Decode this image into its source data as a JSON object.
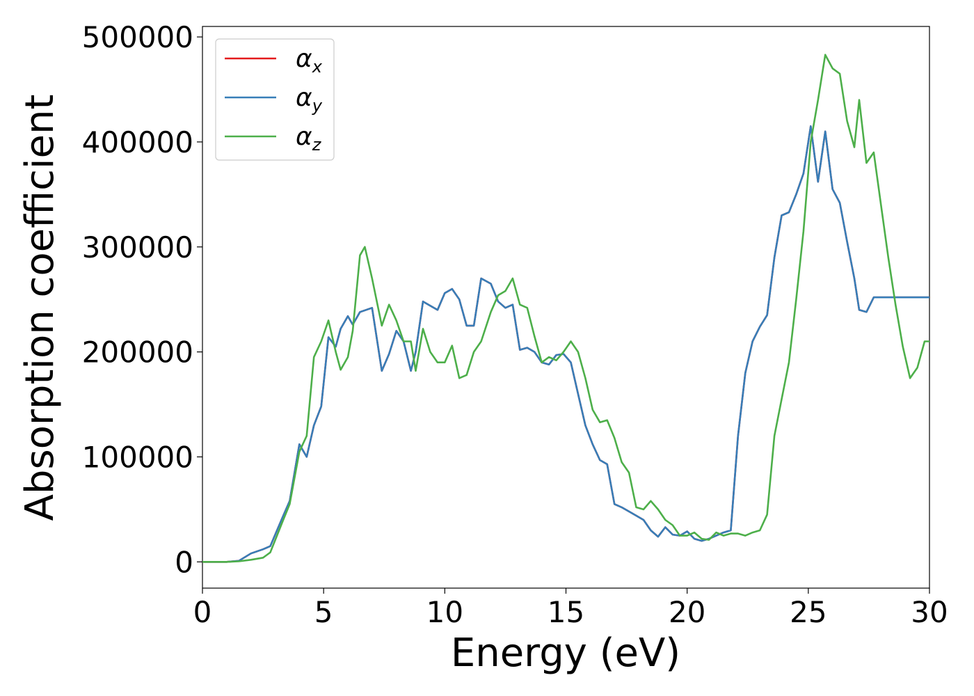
{
  "chart_data": {
    "type": "line",
    "xlabel": "Energy (eV)",
    "ylabel": "Absorption coefficient",
    "xlim": [
      0,
      30
    ],
    "ylim": [
      -25000,
      510000
    ],
    "xticks": [
      0,
      5,
      10,
      15,
      20,
      25,
      30
    ],
    "yticks": [
      0,
      100000,
      200000,
      300000,
      400000,
      500000
    ],
    "grid": false,
    "legend_position": "top-left",
    "series": [
      {
        "name": "x",
        "label_base": "α",
        "label_sub": "x",
        "color": "#e41a1c",
        "x": [
          0,
          1,
          1.5,
          2,
          2.5,
          2.8,
          3.3,
          3.6,
          4.0,
          4.3,
          4.6,
          4.9,
          5.2,
          5.5,
          5.7,
          6.0,
          6.2,
          6.5,
          7.0,
          7.4,
          7.7,
          8.0,
          8.3,
          8.6,
          8.8,
          9.1,
          9.4,
          9.7,
          10.0,
          10.3,
          10.6,
          10.9,
          11.2,
          11.5,
          11.9,
          12.2,
          12.5,
          12.8,
          13.1,
          13.4,
          13.7,
          14.0,
          14.3,
          14.6,
          14.9,
          15.2,
          15.5,
          15.8,
          16.1,
          16.4,
          16.7,
          17.0,
          17.3,
          17.6,
          17.9,
          18.2,
          18.5,
          18.8,
          19.1,
          19.4,
          19.7,
          20.0,
          20.3,
          20.6,
          20.9,
          21.2,
          21.5,
          21.8,
          22.1,
          22.4,
          22.7,
          23.0,
          23.3,
          23.6,
          23.9,
          24.2,
          24.5,
          24.8,
          25.1,
          25.4,
          25.7,
          26.0,
          26.3,
          26.6,
          26.9,
          27.1,
          27.4,
          27.7,
          28.0,
          28.3,
          28.6,
          28.9,
          29.2,
          29.5,
          29.8,
          30.0
        ],
        "y": [
          0,
          0,
          1000,
          8000,
          12000,
          15000,
          42000,
          58000,
          112000,
          100000,
          130000,
          148000,
          214000,
          205000,
          222000,
          234000,
          226000,
          238000,
          242000,
          182000,
          198000,
          220000,
          210000,
          182000,
          200000,
          248000,
          244000,
          240000,
          256000,
          260000,
          250000,
          225000,
          225000,
          270000,
          265000,
          248000,
          242000,
          245000,
          202000,
          204000,
          200000,
          190000,
          188000,
          197000,
          198000,
          190000,
          160000,
          130000,
          112000,
          97000,
          93000,
          55000,
          52000,
          48000,
          44000,
          40000,
          30000,
          24000,
          33000,
          26000,
          25000,
          29000,
          22000,
          20000,
          22000,
          25000,
          28000,
          30000,
          120000,
          180000,
          210000,
          224000,
          235000,
          290000,
          330000,
          333000,
          350000,
          370000,
          415000,
          362000,
          410000,
          355000,
          342000,
          305000,
          270000,
          240000,
          238000,
          252000,
          252000,
          252000,
          252000,
          252000,
          252000,
          252000,
          252000,
          252000
        ]
      },
      {
        "name": "y",
        "label_base": "α",
        "label_sub": "y",
        "color": "#377eb8",
        "x": [
          0,
          1,
          1.5,
          2,
          2.5,
          2.8,
          3.3,
          3.6,
          4.0,
          4.3,
          4.6,
          4.9,
          5.2,
          5.5,
          5.7,
          6.0,
          6.2,
          6.5,
          7.0,
          7.4,
          7.7,
          8.0,
          8.3,
          8.6,
          8.8,
          9.1,
          9.4,
          9.7,
          10.0,
          10.3,
          10.6,
          10.9,
          11.2,
          11.5,
          11.9,
          12.2,
          12.5,
          12.8,
          13.1,
          13.4,
          13.7,
          14.0,
          14.3,
          14.6,
          14.9,
          15.2,
          15.5,
          15.8,
          16.1,
          16.4,
          16.7,
          17.0,
          17.3,
          17.6,
          17.9,
          18.2,
          18.5,
          18.8,
          19.1,
          19.4,
          19.7,
          20.0,
          20.3,
          20.6,
          20.9,
          21.2,
          21.5,
          21.8,
          22.1,
          22.4,
          22.7,
          23.0,
          23.3,
          23.6,
          23.9,
          24.2,
          24.5,
          24.8,
          25.1,
          25.4,
          25.7,
          26.0,
          26.3,
          26.6,
          26.9,
          27.1,
          27.4,
          27.7,
          28.0,
          28.3,
          28.6,
          28.9,
          29.2,
          29.5,
          29.8,
          30.0
        ],
        "y": [
          0,
          0,
          1000,
          8000,
          12000,
          15000,
          42000,
          58000,
          112000,
          100000,
          130000,
          148000,
          214000,
          205000,
          222000,
          234000,
          226000,
          238000,
          242000,
          182000,
          198000,
          220000,
          210000,
          182000,
          200000,
          248000,
          244000,
          240000,
          256000,
          260000,
          250000,
          225000,
          225000,
          270000,
          265000,
          248000,
          242000,
          245000,
          202000,
          204000,
          200000,
          190000,
          188000,
          197000,
          198000,
          190000,
          160000,
          130000,
          112000,
          97000,
          93000,
          55000,
          52000,
          48000,
          44000,
          40000,
          30000,
          24000,
          33000,
          26000,
          25000,
          29000,
          22000,
          20000,
          22000,
          25000,
          28000,
          30000,
          120000,
          180000,
          210000,
          224000,
          235000,
          290000,
          330000,
          333000,
          350000,
          370000,
          415000,
          362000,
          410000,
          355000,
          342000,
          305000,
          270000,
          240000,
          238000,
          252000,
          252000,
          252000,
          252000,
          252000,
          252000,
          252000,
          252000,
          252000
        ]
      },
      {
        "name": "z",
        "label_base": "α",
        "label_sub": "z",
        "color": "#4daf4a",
        "x": [
          0,
          1,
          1.5,
          2,
          2.5,
          2.8,
          3.3,
          3.6,
          4.0,
          4.3,
          4.6,
          4.9,
          5.2,
          5.5,
          5.7,
          6.0,
          6.2,
          6.5,
          6.7,
          7.0,
          7.4,
          7.7,
          8.0,
          8.3,
          8.6,
          8.8,
          9.1,
          9.4,
          9.7,
          10.0,
          10.3,
          10.6,
          10.9,
          11.2,
          11.5,
          11.9,
          12.2,
          12.5,
          12.8,
          13.1,
          13.4,
          13.7,
          14.0,
          14.3,
          14.6,
          14.9,
          15.2,
          15.5,
          15.8,
          16.1,
          16.4,
          16.7,
          17.0,
          17.3,
          17.6,
          17.9,
          18.2,
          18.5,
          18.8,
          19.1,
          19.4,
          19.7,
          20.0,
          20.3,
          20.6,
          20.9,
          21.2,
          21.5,
          21.8,
          22.1,
          22.4,
          22.7,
          23.0,
          23.3,
          23.6,
          23.9,
          24.2,
          24.5,
          24.8,
          25.1,
          25.4,
          25.7,
          26.0,
          26.3,
          26.6,
          26.9,
          27.1,
          27.4,
          27.7,
          28.0,
          28.3,
          28.6,
          28.9,
          29.2,
          29.5,
          29.8,
          30.0
        ],
        "y": [
          0,
          0,
          500,
          2000,
          4000,
          9000,
          38000,
          55000,
          105000,
          120000,
          195000,
          210000,
          230000,
          200000,
          183000,
          195000,
          220000,
          292000,
          300000,
          270000,
          225000,
          245000,
          230000,
          210000,
          210000,
          182000,
          222000,
          200000,
          190000,
          190000,
          206000,
          175000,
          178000,
          200000,
          210000,
          238000,
          254000,
          258000,
          270000,
          245000,
          242000,
          215000,
          190000,
          195000,
          192000,
          200000,
          210000,
          200000,
          175000,
          145000,
          133000,
          135000,
          118000,
          95000,
          85000,
          52000,
          50000,
          58000,
          50000,
          40000,
          35000,
          25000,
          25000,
          28000,
          22000,
          21000,
          28000,
          25000,
          27000,
          27000,
          25000,
          28000,
          30000,
          45000,
          120000,
          155000,
          190000,
          250000,
          315000,
          400000,
          440000,
          483000,
          470000,
          465000,
          420000,
          395000,
          440000,
          380000,
          390000,
          340000,
          290000,
          245000,
          205000,
          175000,
          185000,
          210000,
          210000
        ]
      }
    ]
  }
}
